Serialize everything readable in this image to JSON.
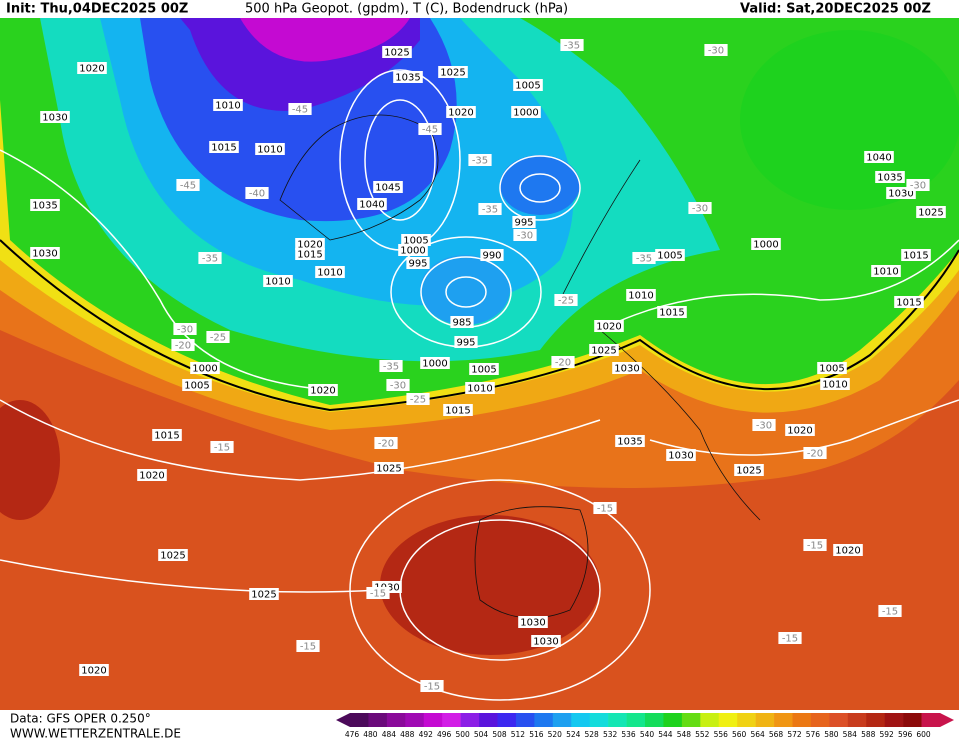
{
  "header": {
    "init": "Init: Thu,04DEC2025 00Z",
    "title": "500 hPa Geopot. (gpdm), T (C), Bodendruck (hPa)",
    "valid": "Valid: Sat,20DEC2025 00Z"
  },
  "isobar_labels": [
    1020,
    1025,
    1035,
    1025,
    1030,
    1010,
    1015,
    1010,
    1020,
    1005,
    1000,
    1045,
    1040,
    1035,
    1030,
    1020,
    1015,
    1010,
    1005,
    1000,
    995,
    990,
    995,
    985,
    995,
    1000,
    1005,
    1010,
    1015,
    1010,
    1000,
    1005,
    1020,
    1015,
    1020,
    1025,
    1025,
    1025,
    1030,
    1020,
    1030,
    1030,
    1020,
    1025,
    1030,
    1010,
    1015,
    1005,
    1000,
    1010,
    1015,
    1015,
    1040,
    1035,
    1030,
    1025,
    1005,
    1010,
    1020,
    1035,
    1030,
    1025,
    1020
  ],
  "temperature_labels": [
    -45,
    -45,
    -35,
    -45,
    -40,
    -35,
    -30,
    -35,
    -30,
    -20,
    -25,
    -25,
    -20,
    -35,
    -30,
    -25,
    -20,
    -15,
    -15,
    -15,
    -15,
    -15,
    -15,
    -15,
    -15,
    -30,
    -35,
    -30,
    -35,
    -30,
    -30,
    -20
  ],
  "colorbar": {
    "levels": [
      476,
      480,
      484,
      488,
      492,
      496,
      500,
      504,
      508,
      512,
      516,
      520,
      524,
      528,
      532,
      536,
      540,
      544,
      548,
      552,
      556,
      560,
      564,
      568,
      572,
      576,
      580,
      584,
      588,
      592,
      596,
      600
    ],
    "colors": [
      "#4b0a5a",
      "#6a0a7a",
      "#8a0a9a",
      "#a00ab4",
      "#c40ad2",
      "#d21ee6",
      "#8c1ee6",
      "#5a14dc",
      "#3c28f0",
      "#2850f0",
      "#1e78f0",
      "#1ea0f0",
      "#14c8f0",
      "#14dcdc",
      "#14e6b4",
      "#14e68c",
      "#14dc5a",
      "#1ed21e",
      "#64dc14",
      "#c8f014",
      "#f0f014",
      "#f0d214",
      "#f0b414",
      "#f09614",
      "#eb7814",
      "#e6641e",
      "#dc5028",
      "#c83c1e",
      "#b42814",
      "#a01414",
      "#8c0a0a",
      "#c8144c"
    ]
  },
  "footer": {
    "source": "Data: GFS OPER 0.250°",
    "website": "WWW.WETTERZENTRALE.DE"
  }
}
